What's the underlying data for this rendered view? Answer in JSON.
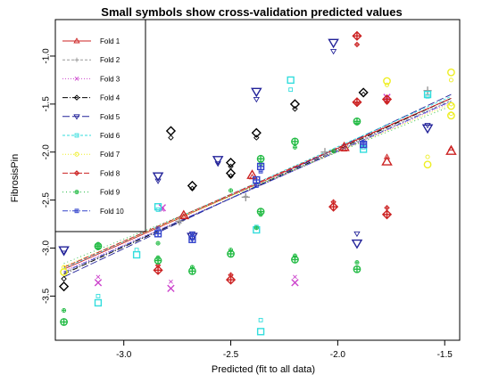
{
  "chart_data": {
    "type": "scatter",
    "title": "Small symbols show cross-validation predicted values",
    "xlabel": "Predicted (fit to all data)",
    "ylabel": "FibrosisPin",
    "xlim": [
      -3.32,
      -1.43
    ],
    "ylim": [
      -3.96,
      -0.62
    ],
    "xticks": [
      -3.0,
      -2.5,
      -2.0,
      -1.5
    ],
    "yticks": [
      -3.5,
      -3.0,
      -2.5,
      -2.0,
      -1.5,
      -1.0
    ],
    "xtick_labels": [
      "-3.0",
      "-2.5",
      "-2.0",
      "-1.5"
    ],
    "ytick_labels": [
      "-3.5",
      "-3.0",
      "-2.5",
      "-2.0",
      "-1.5",
      "-1.0"
    ],
    "grid": false,
    "legend_position": "top-left",
    "series": [
      {
        "name": "Fold 1",
        "color": "#cc2222",
        "marker": "triangle",
        "dash": "",
        "line": [
          [
            -3.28,
            -3.22
          ],
          [
            -1.47,
            -1.44
          ]
        ],
        "fit": [
          [
            -2.72,
            -2.66
          ],
          [
            -2.4,
            -2.24
          ],
          [
            -1.97,
            -1.95
          ],
          [
            -1.77,
            -2.1
          ],
          [
            -1.47,
            -1.99
          ]
        ],
        "cv": [
          [
            -2.72,
            -2.67
          ],
          [
            -2.4,
            -2.26
          ],
          [
            -1.97,
            -1.97
          ],
          [
            -1.77,
            -2.05
          ],
          [
            -1.47,
            -1.96
          ]
        ]
      },
      {
        "name": "Fold 2",
        "color": "#999999",
        "marker": "plus",
        "dash": "3,2",
        "line": [
          [
            -3.28,
            -3.26
          ],
          [
            -1.47,
            -1.46
          ]
        ],
        "fit": [
          [
            -2.92,
            -2.8
          ],
          [
            -2.74,
            -2.72
          ],
          [
            -2.43,
            -2.47
          ],
          [
            -2.06,
            -2.0
          ],
          [
            -1.58,
            -1.36
          ]
        ],
        "cv": [
          [
            -2.92,
            -2.83
          ],
          [
            -2.74,
            -2.74
          ],
          [
            -2.43,
            -2.46
          ],
          [
            -2.06,
            -2.03
          ],
          [
            -1.58,
            -1.4
          ]
        ]
      },
      {
        "name": "Fold 3",
        "color": "#cc44cc",
        "marker": "cross",
        "dash": "1,2",
        "line": [
          [
            -3.28,
            -3.24
          ],
          [
            -1.47,
            -1.48
          ]
        ],
        "fit": [
          [
            -3.12,
            -3.36
          ],
          [
            -2.78,
            -3.42
          ],
          [
            -2.82,
            -2.58
          ],
          [
            -2.2,
            -3.36
          ],
          [
            -1.77,
            -1.43
          ]
        ],
        "cv": [
          [
            -3.12,
            -3.3
          ],
          [
            -2.78,
            -3.35
          ],
          [
            -2.82,
            -2.6
          ],
          [
            -2.2,
            -3.3
          ],
          [
            -1.77,
            -1.46
          ]
        ]
      },
      {
        "name": "Fold 4",
        "color": "#000000",
        "marker": "diamond",
        "dash": "6,2,1,2",
        "line": [
          [
            -3.28,
            -3.27
          ],
          [
            -1.47,
            -1.44
          ]
        ],
        "fit": [
          [
            -3.28,
            -3.4
          ],
          [
            -2.78,
            -1.78
          ],
          [
            -2.68,
            -2.35
          ],
          [
            -2.5,
            -2.11
          ],
          [
            -2.5,
            -2.22
          ],
          [
            -2.38,
            -1.8
          ],
          [
            -2.2,
            -1.5
          ],
          [
            -1.88,
            -1.38
          ]
        ],
        "cv": [
          [
            -3.28,
            -3.32
          ],
          [
            -2.78,
            -1.85
          ],
          [
            -2.68,
            -2.38
          ],
          [
            -2.5,
            -2.15
          ],
          [
            -2.5,
            -2.25
          ],
          [
            -2.38,
            -1.85
          ],
          [
            -2.2,
            -1.55
          ],
          [
            -1.88,
            -1.4
          ]
        ]
      },
      {
        "name": "Fold 5",
        "color": "#222299",
        "marker": "triangle-down",
        "dash": "8,3",
        "line": [
          [
            -3.28,
            -3.3
          ],
          [
            -1.47,
            -1.4
          ]
        ],
        "fit": [
          [
            -3.28,
            -3.02
          ],
          [
            -2.84,
            -2.25
          ],
          [
            -2.68,
            -2.88
          ],
          [
            -2.56,
            -2.08
          ],
          [
            -2.38,
            -1.37
          ],
          [
            -2.02,
            -0.86
          ],
          [
            -1.91,
            -2.95
          ],
          [
            -1.58,
            -1.75
          ]
        ],
        "cv": [
          [
            -3.28,
            -3.05
          ],
          [
            -2.84,
            -2.3
          ],
          [
            -2.68,
            -2.85
          ],
          [
            -2.56,
            -2.12
          ],
          [
            -2.38,
            -1.45
          ],
          [
            -2.02,
            -0.95
          ],
          [
            -1.91,
            -2.85
          ],
          [
            -1.58,
            -1.72
          ]
        ]
      },
      {
        "name": "Fold 6",
        "color": "#33dddd",
        "marker": "square",
        "dash": "3,2",
        "line": [
          [
            -3.28,
            -3.21
          ],
          [
            -1.47,
            -1.42
          ]
        ],
        "fit": [
          [
            -3.12,
            -3.57
          ],
          [
            -2.94,
            -3.07
          ],
          [
            -2.84,
            -2.57
          ],
          [
            -2.38,
            -2.81
          ],
          [
            -2.36,
            -3.87
          ],
          [
            -2.22,
            -1.25
          ],
          [
            -1.88,
            -1.97
          ],
          [
            -1.58,
            -1.4
          ]
        ],
        "cv": [
          [
            -3.12,
            -3.5
          ],
          [
            -2.94,
            -3.02
          ],
          [
            -2.84,
            -2.6
          ],
          [
            -2.38,
            -2.78
          ],
          [
            -2.36,
            -3.75
          ],
          [
            -2.22,
            -1.35
          ],
          [
            -1.88,
            -1.95
          ],
          [
            -1.58,
            -1.42
          ]
        ]
      },
      {
        "name": "Fold 7",
        "color": "#eeee22",
        "marker": "circle",
        "dash": "1,2",
        "line": [
          [
            -3.28,
            -3.19
          ],
          [
            -1.47,
            -1.5
          ]
        ],
        "fit": [
          [
            -3.28,
            -3.25
          ],
          [
            -1.77,
            -1.26
          ],
          [
            -1.58,
            -2.13
          ],
          [
            -1.47,
            -1.17
          ],
          [
            -1.47,
            -1.52
          ],
          [
            -1.47,
            -1.62
          ]
        ],
        "cv": [
          [
            -3.28,
            -3.2
          ],
          [
            -1.77,
            -1.3
          ],
          [
            -1.58,
            -2.05
          ],
          [
            -1.47,
            -1.25
          ],
          [
            -1.47,
            -1.5
          ],
          [
            -1.47,
            -1.6
          ]
        ]
      },
      {
        "name": "Fold 8",
        "color": "#cc2222",
        "marker": "diamond-plus",
        "dash": "6,2",
        "line": [
          [
            -3.28,
            -3.2
          ],
          [
            -1.47,
            -1.44
          ]
        ],
        "fit": [
          [
            -2.84,
            -3.23
          ],
          [
            -2.5,
            -3.33
          ],
          [
            -2.02,
            -2.57
          ],
          [
            -1.91,
            -0.79
          ],
          [
            -1.91,
            -1.48
          ],
          [
            -1.77,
            -1.45
          ],
          [
            -1.77,
            -2.65
          ]
        ],
        "cv": [
          [
            -2.84,
            -3.18
          ],
          [
            -2.5,
            -3.28
          ],
          [
            -2.02,
            -2.52
          ],
          [
            -1.91,
            -0.88
          ],
          [
            -1.91,
            -1.5
          ],
          [
            -1.77,
            -1.48
          ],
          [
            -1.77,
            -2.58
          ]
        ]
      },
      {
        "name": "Fold 9",
        "color": "#22bb44",
        "marker": "circle-plus",
        "dash": "1,3",
        "line": [
          [
            -3.28,
            -3.16
          ],
          [
            -1.47,
            -1.52
          ]
        ],
        "fit": [
          [
            -3.28,
            -3.77
          ],
          [
            -3.12,
            -2.98
          ],
          [
            -2.84,
            -3.13
          ],
          [
            -2.68,
            -3.24
          ],
          [
            -2.5,
            -3.06
          ],
          [
            -2.36,
            -2.62
          ],
          [
            -2.36,
            -2.07
          ],
          [
            -2.2,
            -3.12
          ],
          [
            -2.2,
            -1.89
          ],
          [
            -1.91,
            -3.22
          ],
          [
            -1.91,
            -1.68
          ]
        ],
        "cv": [
          [
            -3.28,
            -3.65
          ],
          [
            -3.12,
            -3.0
          ],
          [
            -2.84,
            -3.1
          ],
          [
            -2.68,
            -3.2
          ],
          [
            -2.5,
            -3.02
          ],
          [
            -2.36,
            -2.65
          ],
          [
            -2.36,
            -2.12
          ],
          [
            -2.2,
            -3.08
          ],
          [
            -2.2,
            -1.95
          ],
          [
            -1.91,
            -3.15
          ],
          [
            -1.91,
            -1.7
          ]
        ],
        "extra_cv": [
          [
            -3.12,
            -2.96
          ],
          [
            -2.84,
            -2.95
          ],
          [
            -2.38,
            -2.79
          ],
          [
            -2.5,
            -2.4
          ],
          [
            -2.02,
            -1.99
          ]
        ]
      },
      {
        "name": "Fold 10",
        "color": "#3344cc",
        "marker": "square-plus",
        "dash": "6,2,1,2",
        "line": [
          [
            -3.28,
            -3.25
          ],
          [
            -1.47,
            -1.47
          ]
        ],
        "fit": [
          [
            -2.84,
            -2.85
          ],
          [
            -2.68,
            -2.91
          ],
          [
            -2.38,
            -2.29
          ],
          [
            -2.36,
            -2.15
          ],
          [
            -1.88,
            -1.92
          ]
        ],
        "cv": [
          [
            -2.84,
            -2.8
          ],
          [
            -2.68,
            -2.85
          ],
          [
            -2.38,
            -2.35
          ],
          [
            -2.36,
            -2.2
          ],
          [
            -1.88,
            -1.9
          ]
        ]
      }
    ]
  }
}
